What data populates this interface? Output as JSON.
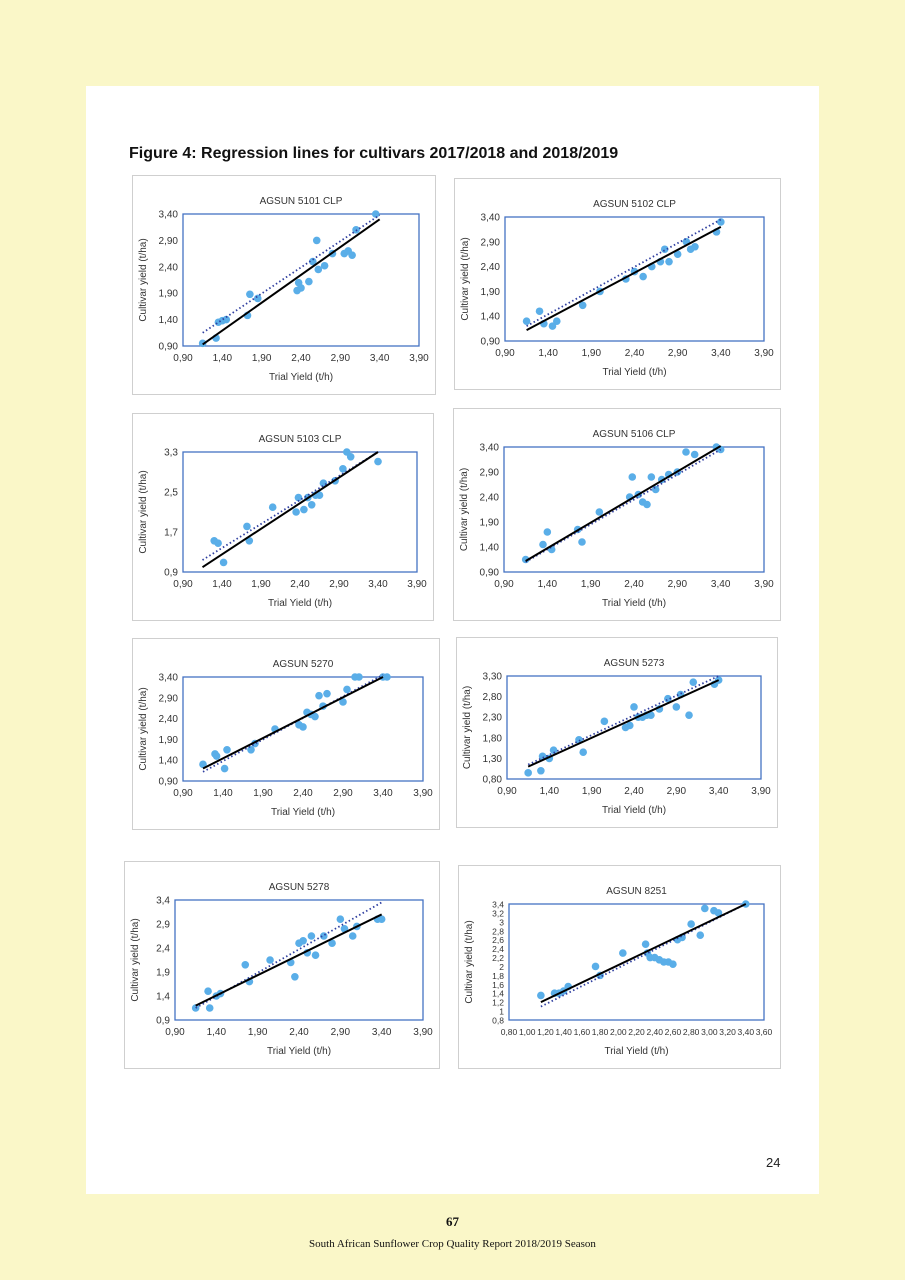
{
  "figure_title": "Figure 4: Regression lines for cultivars 2017/2018 and 2018/2019",
  "page_number": "24",
  "footer": {
    "number": "67",
    "title": "South African Sunflower Crop Quality Report 2018/2019 Season"
  },
  "colors": {
    "points": "#5aaee8",
    "frame": "#4472c4",
    "regression": "#000000",
    "dotted": "#2f3fa0"
  },
  "chart_data": [
    {
      "type": "scatter",
      "title": "AGSUN 5101 CLP",
      "xlabel": "Trial Yield (t/h)",
      "ylabel": "Cultivar yield (t/ha)",
      "xlim": [
        0.9,
        3.9
      ],
      "ylim": [
        0.9,
        3.4
      ],
      "xticks": [
        "0,90",
        "1,40",
        "1,90",
        "2,40",
        "2,90",
        "3,40",
        "3,90"
      ],
      "yticks": [
        "0,90",
        "1,40",
        "1,90",
        "2,40",
        "2,90",
        "3,40"
      ],
      "x": [
        1.15,
        1.32,
        1.35,
        1.4,
        1.45,
        1.72,
        1.75,
        1.85,
        2.35,
        2.37,
        2.4,
        2.5,
        2.55,
        2.6,
        2.62,
        2.7,
        2.8,
        2.95,
        3.0,
        3.05,
        3.1,
        3.35
      ],
      "y": [
        0.95,
        1.05,
        1.35,
        1.38,
        1.4,
        1.48,
        1.88,
        1.8,
        1.95,
        2.1,
        2.0,
        2.12,
        2.5,
        2.9,
        2.35,
        2.42,
        2.65,
        2.65,
        2.7,
        2.62,
        3.1,
        3.4
      ],
      "regression": [
        [
          1.15,
          0.93
        ],
        [
          3.4,
          3.3
        ]
      ],
      "trend_dotted": [
        [
          1.15,
          1.15
        ],
        [
          3.4,
          3.38
        ]
      ]
    },
    {
      "type": "scatter",
      "title": "AGSUN 5102 CLP",
      "xlabel": "Trial Yield (t/h)",
      "ylabel": "Cultivar yield (t/ha)",
      "xlim": [
        0.9,
        3.9
      ],
      "ylim": [
        0.9,
        3.4
      ],
      "xticks": [
        "0,90",
        "1,40",
        "1,90",
        "2,40",
        "2,90",
        "3,40",
        "3,90"
      ],
      "yticks": [
        "0,90",
        "1,40",
        "1,90",
        "2,40",
        "2,90",
        "3,40"
      ],
      "x": [
        1.15,
        1.3,
        1.35,
        1.45,
        1.5,
        1.8,
        2.0,
        2.3,
        2.4,
        2.5,
        2.6,
        2.7,
        2.75,
        2.8,
        2.9,
        3.0,
        3.05,
        3.1,
        3.35,
        3.4
      ],
      "y": [
        1.3,
        1.5,
        1.25,
        1.2,
        1.3,
        1.62,
        1.9,
        2.15,
        2.3,
        2.2,
        2.4,
        2.5,
        2.75,
        2.5,
        2.65,
        2.9,
        2.75,
        2.8,
        3.1,
        3.3
      ],
      "regression": [
        [
          1.15,
          1.12
        ],
        [
          3.4,
          3.2
        ]
      ],
      "trend_dotted": [
        [
          1.15,
          1.2
        ],
        [
          3.4,
          3.35
        ]
      ]
    },
    {
      "type": "scatter",
      "title": "AGSUN 5103 CLP",
      "xlabel": "Trial Yield (t/h)",
      "ylabel": "Cultivar yield (t/ha)",
      "xlim": [
        0.9,
        3.9
      ],
      "ylim": [
        0.9,
        3.4
      ],
      "xticks": [
        "0,90",
        "1,40",
        "1,90",
        "2,40",
        "2,90",
        "3,40",
        "3,90"
      ],
      "yticks": [
        "0,9",
        "1,7",
        "2,5",
        "3,3"
      ],
      "x": [
        1.3,
        1.35,
        1.42,
        1.72,
        1.75,
        2.05,
        2.35,
        2.38,
        2.45,
        2.5,
        2.55,
        2.6,
        2.65,
        2.7,
        2.85,
        2.95,
        3.0,
        3.05,
        3.4
      ],
      "y": [
        1.55,
        1.5,
        1.1,
        1.85,
        1.55,
        2.25,
        2.15,
        2.45,
        2.2,
        2.45,
        2.3,
        2.5,
        2.5,
        2.75,
        2.8,
        3.05,
        3.4,
        3.3,
        3.2
      ],
      "regression": [
        [
          1.15,
          1.0
        ],
        [
          3.4,
          3.4
        ]
      ],
      "trend_dotted": [
        [
          1.15,
          1.15
        ],
        [
          3.4,
          3.4
        ]
      ]
    },
    {
      "type": "scatter",
      "title": "AGSUN 5106 CLP",
      "xlabel": "Trial Yield (t/h)",
      "ylabel": "Cultivar yield (t/ha)",
      "xlim": [
        0.9,
        3.9
      ],
      "ylim": [
        0.9,
        3.4
      ],
      "xticks": [
        "0,90",
        "1,40",
        "1,90",
        "2,40",
        "2,90",
        "3,40",
        "3,90"
      ],
      "yticks": [
        "0,90",
        "1,40",
        "1,90",
        "2,40",
        "2,90",
        "3,40"
      ],
      "x": [
        1.15,
        1.35,
        1.4,
        1.45,
        1.75,
        1.8,
        2.0,
        2.35,
        2.38,
        2.45,
        2.5,
        2.55,
        2.6,
        2.65,
        2.72,
        2.8,
        2.9,
        3.0,
        3.1,
        3.35,
        3.4
      ],
      "y": [
        1.15,
        1.45,
        1.7,
        1.35,
        1.75,
        1.5,
        2.1,
        2.4,
        2.8,
        2.45,
        2.3,
        2.25,
        2.8,
        2.55,
        2.75,
        2.85,
        2.9,
        3.3,
        3.25,
        3.4,
        3.35
      ],
      "regression": [
        [
          1.15,
          1.12
        ],
        [
          3.4,
          3.42
        ]
      ],
      "trend_dotted": [
        [
          1.15,
          1.1
        ],
        [
          3.4,
          3.35
        ]
      ]
    },
    {
      "type": "scatter",
      "title": "AGSUN 5270",
      "xlabel": "Trial Yield (t/h)",
      "ylabel": "Cultivar yield (t/ha)",
      "xlim": [
        0.9,
        3.9
      ],
      "ylim": [
        0.9,
        3.4
      ],
      "xticks": [
        "0,90",
        "1,40",
        "1,90",
        "2,40",
        "2,90",
        "3,40",
        "3,90"
      ],
      "yticks": [
        "0,90",
        "1,40",
        "1,90",
        "2,40",
        "2,90",
        "3,40"
      ],
      "x": [
        1.15,
        1.3,
        1.32,
        1.42,
        1.45,
        1.75,
        1.8,
        2.05,
        2.35,
        2.4,
        2.45,
        2.5,
        2.55,
        2.6,
        2.65,
        2.7,
        2.9,
        2.95,
        3.05,
        3.1,
        3.4,
        3.45
      ],
      "y": [
        1.3,
        1.55,
        1.5,
        1.2,
        1.65,
        1.65,
        1.8,
        2.15,
        2.25,
        2.2,
        2.55,
        2.5,
        2.45,
        2.95,
        2.7,
        3.0,
        2.8,
        3.1,
        3.4,
        3.4,
        3.4,
        3.4
      ],
      "regression": [
        [
          1.15,
          1.2
        ],
        [
          3.4,
          3.4
        ]
      ],
      "trend_dotted": [
        [
          1.15,
          1.12
        ],
        [
          3.4,
          3.45
        ]
      ]
    },
    {
      "type": "scatter",
      "title": "AGSUN 5273",
      "xlabel": "Trial Yield (t/h)",
      "ylabel": "Cultivar yield (t/ha)",
      "xlim": [
        0.9,
        3.9
      ],
      "ylim": [
        0.8,
        3.3
      ],
      "xticks": [
        "0,90",
        "1,40",
        "1,90",
        "2,40",
        "2,90",
        "3,40",
        "3,90"
      ],
      "yticks": [
        "0,80",
        "1,30",
        "1,80",
        "2,30",
        "2,80",
        "3,30"
      ],
      "x": [
        1.15,
        1.3,
        1.32,
        1.4,
        1.45,
        1.75,
        1.8,
        2.05,
        2.3,
        2.35,
        2.4,
        2.45,
        2.5,
        2.55,
        2.6,
        2.7,
        2.8,
        2.9,
        2.95,
        3.05,
        3.1,
        3.35,
        3.4
      ],
      "y": [
        0.95,
        1.0,
        1.35,
        1.3,
        1.5,
        1.75,
        1.45,
        2.2,
        2.05,
        2.1,
        2.55,
        2.3,
        2.3,
        2.35,
        2.35,
        2.5,
        2.75,
        2.55,
        2.85,
        2.35,
        3.15,
        3.1,
        3.2
      ],
      "regression": [
        [
          1.15,
          1.1
        ],
        [
          3.4,
          3.2
        ]
      ],
      "trend_dotted": [
        [
          1.15,
          1.15
        ],
        [
          3.4,
          3.3
        ]
      ]
    },
    {
      "type": "scatter",
      "title": "AGSUN 5278",
      "xlabel": "Trial Yield (t/h)",
      "ylabel": "Cultivar yield (t/ha)",
      "xlim": [
        0.9,
        3.9
      ],
      "ylim": [
        0.9,
        3.4
      ],
      "xticks": [
        "0,90",
        "1,40",
        "1,90",
        "2,40",
        "2,90",
        "3,40",
        "3,90"
      ],
      "yticks": [
        "0,9",
        "1,4",
        "1,9",
        "2,4",
        "2,9",
        "3,4"
      ],
      "x": [
        1.15,
        1.3,
        1.32,
        1.4,
        1.45,
        1.75,
        1.8,
        2.05,
        2.3,
        2.35,
        2.4,
        2.45,
        2.5,
        2.55,
        2.6,
        2.7,
        2.8,
        2.9,
        2.95,
        3.05,
        3.1,
        3.35,
        3.4
      ],
      "y": [
        1.15,
        1.5,
        1.15,
        1.4,
        1.45,
        2.05,
        1.7,
        2.15,
        2.1,
        1.8,
        2.5,
        2.55,
        2.3,
        2.65,
        2.25,
        2.65,
        2.5,
        3.0,
        2.8,
        2.65,
        2.85,
        3.0,
        3.0
      ],
      "regression": [
        [
          1.15,
          1.2
        ],
        [
          3.4,
          3.1
        ]
      ],
      "trend_dotted": [
        [
          1.15,
          1.15
        ],
        [
          3.4,
          3.35
        ]
      ]
    },
    {
      "type": "scatter",
      "title": "AGSUN 8251",
      "xlabel": "Trial Yield (t/h)",
      "ylabel": "Cultivar yield (t/ha)",
      "xlim": [
        0.8,
        3.6
      ],
      "ylim": [
        0.8,
        3.4
      ],
      "xticks": [
        "0,80",
        "1,00",
        "1,20",
        "1,40",
        "1,60",
        "1,80",
        "2,00",
        "2,20",
        "2,40",
        "2,60",
        "2,80",
        "3,00",
        "3,20",
        "3,40",
        "3,60"
      ],
      "yticks": [
        "0,8",
        "1",
        "1,2",
        "1,4",
        "1,6",
        "1,8",
        "2",
        "2,2",
        "2,4",
        "2,6",
        "2,8",
        "3",
        "3,2",
        "3,4"
      ],
      "x": [
        1.15,
        1.3,
        1.35,
        1.4,
        1.45,
        1.75,
        1.8,
        2.05,
        2.3,
        2.32,
        2.35,
        2.4,
        2.45,
        2.5,
        2.55,
        2.6,
        2.65,
        2.7,
        2.8,
        2.9,
        2.95,
        3.05,
        3.1,
        3.4
      ],
      "y": [
        1.35,
        1.4,
        1.4,
        1.45,
        1.55,
        2.0,
        1.8,
        2.3,
        2.5,
        2.3,
        2.2,
        2.2,
        2.15,
        2.1,
        2.1,
        2.05,
        2.6,
        2.65,
        2.95,
        2.7,
        3.3,
        3.25,
        3.2,
        3.4
      ],
      "regression": [
        [
          1.15,
          1.2
        ],
        [
          3.4,
          3.4
        ]
      ],
      "trend_dotted": [
        [
          1.15,
          1.1
        ],
        [
          3.4,
          3.4
        ]
      ]
    }
  ]
}
